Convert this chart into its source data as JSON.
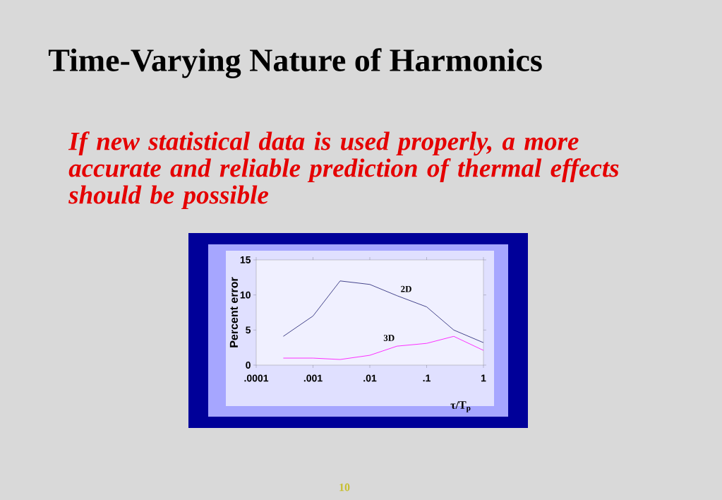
{
  "chart_data": {
    "type": "line",
    "title": "Time-Varying Nature of Harmonics",
    "subtitle": "If new statistical data is used properly, a more accurate and reliable prediction of thermal effects should be possible",
    "xlabel": "τ/T$_{p}$",
    "ylabel": "Percent error",
    "log": "x",
    "x": [
      0.0003,
      0.001,
      0.003,
      0.01,
      0.03,
      0.1,
      0.3,
      1
    ],
    "series": [
      {
        "name": "2D",
        "color": "#1a1a6e",
        "values": [
          4.1,
          7.0,
          12.0,
          11.5,
          9.9,
          8.3,
          5.0,
          3.2
        ]
      },
      {
        "name": "3D",
        "color": "#ff00ff",
        "values": [
          1.0,
          1.0,
          0.8,
          1.4,
          2.7,
          3.1,
          4.1,
          2.1
        ]
      }
    ],
    "xlim": [
      0.0001,
      1
    ],
    "ylim": [
      0,
      15
    ],
    "xticks": [
      {
        "value": 0.0001,
        "label": ".0001"
      },
      {
        "value": 0.001,
        "label": ".001"
      },
      {
        "value": 0.01,
        "label": ".01"
      },
      {
        "value": 0.1,
        "label": ".1"
      },
      {
        "value": 1,
        "label": "1"
      }
    ],
    "yticks": [
      0,
      5,
      10,
      15
    ],
    "grid": false,
    "legend": false,
    "marker": "none",
    "line_style": "solid",
    "annotations": [
      "10"
    ]
  }
}
